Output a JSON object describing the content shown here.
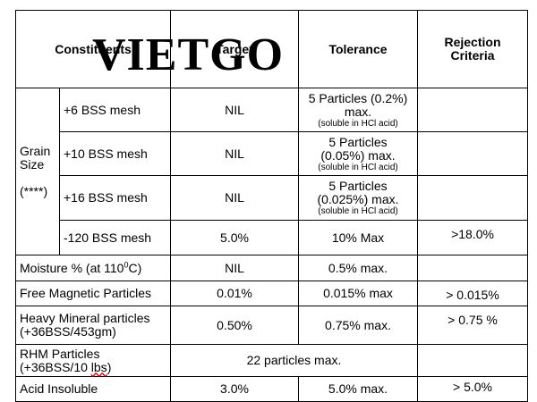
{
  "watermark": "VIETGO",
  "headers": {
    "constituents": "Constituents",
    "target": "Target",
    "tolerance": "Tolerance",
    "rejection_line1": "Rejection",
    "rejection_line2": "Criteria"
  },
  "grain_size": {
    "label_line1": "Grain",
    "label_line2": "Size",
    "label_line3": "(****)",
    "rows": [
      {
        "mesh": "+6 BSS mesh",
        "target": "NIL",
        "tolerance_line1": "5 Particles (0.2%)",
        "tolerance_line2": "max.",
        "note": "(soluble in HCl acid)",
        "rejection": ""
      },
      {
        "mesh": "+10 BSS mesh",
        "target": "NIL",
        "tolerance_line1": "5 Particles",
        "tolerance_line2": "(0.05%) max.",
        "note": "(soluble in HCl acid)",
        "rejection": ""
      },
      {
        "mesh": "+16 BSS mesh",
        "target": "NIL",
        "tolerance_line1": "5 Particles",
        "tolerance_line2": "(0.025%) max.",
        "note": "(soluble in HCl acid)",
        "rejection": ""
      },
      {
        "mesh": "-120 BSS mesh",
        "target": "5.0%",
        "tolerance_line1": "10% Max",
        "tolerance_line2": "",
        "note": "",
        "rejection": ">18.0%"
      }
    ]
  },
  "moisture": {
    "label_pre": "Moisture % (at 110",
    "label_sup": "0",
    "label_post": "C)",
    "target": "NIL",
    "tolerance": "0.5% max.",
    "rejection": ""
  },
  "rows": [
    {
      "label_line1": "Free Magnetic Particles",
      "label_line2": "",
      "target": "0.01%",
      "tolerance": "0.015% max",
      "rejection": "> 0.015%"
    },
    {
      "label_line1": "Heavy Mineral particles",
      "label_line2": "(+36BSS/453gm)",
      "target": "0.50%",
      "tolerance": "0.75% max.",
      "rejection": "> 0.75 %"
    }
  ],
  "rhm": {
    "label_line1": "RHM Particles",
    "label_line2_pre": "(+36BSS/10 ",
    "label_line2_u": "lbs",
    "label_line2_post": ")",
    "merged_value": "22 particles max.",
    "rejection": ""
  },
  "acid": {
    "label": "Acid Insoluble",
    "target": "3.0%",
    "tolerance": "5.0% max.",
    "rejection": "> 5.0%"
  }
}
